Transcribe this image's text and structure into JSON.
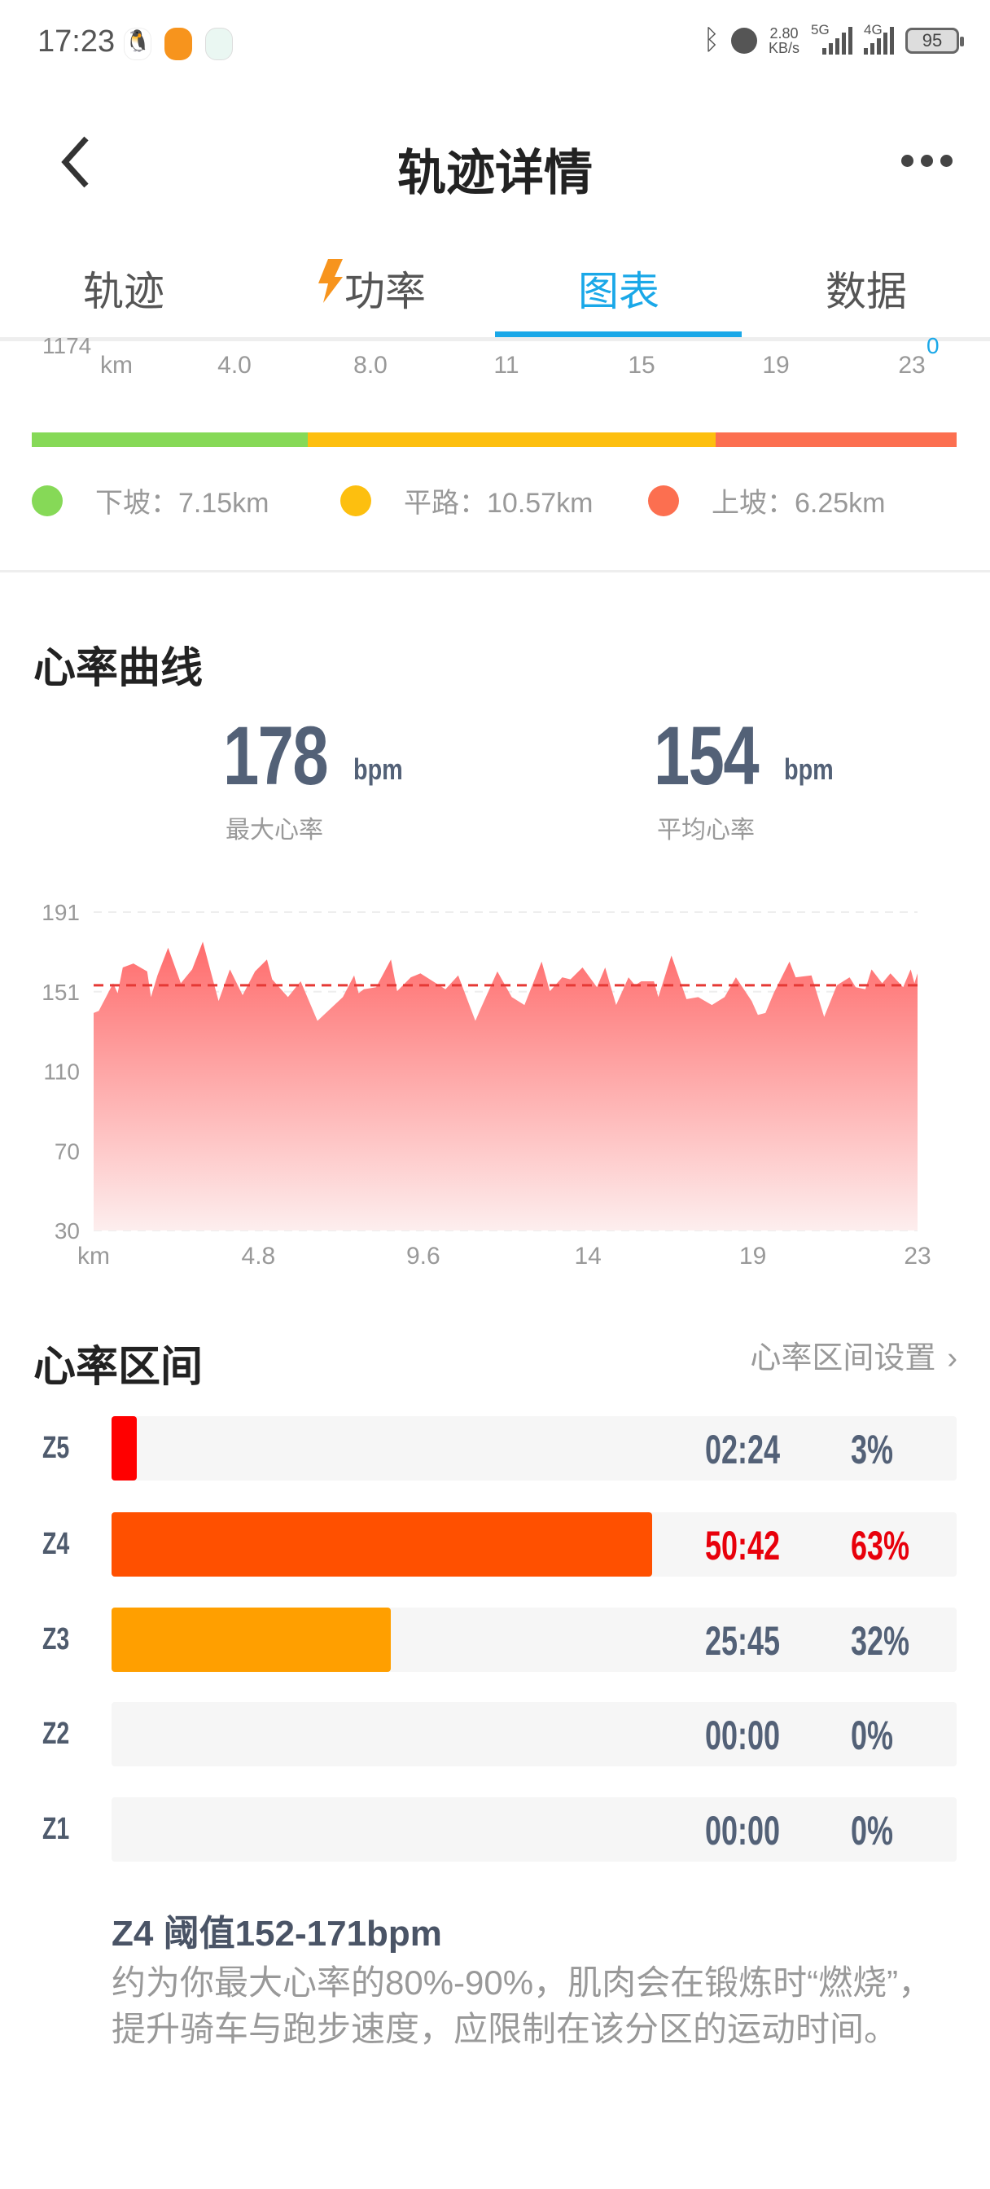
{
  "status_bar": {
    "time": "17:23",
    "net_speed": "2.80",
    "net_unit": "KB/s",
    "sig1": "5G",
    "sig2": "4G",
    "battery": "95",
    "icons": [
      "qq-icon",
      "app-icon",
      "notes-icon",
      "bluetooth-icon",
      "alarm-icon"
    ]
  },
  "header": {
    "title": "轨迹详情",
    "back_icon": "chevron-left-icon",
    "more_icon": "more-dots-icon"
  },
  "tabs": [
    {
      "label": "轨迹"
    },
    {
      "label": "功率",
      "icon": "lightning-icon"
    },
    {
      "label": "图表",
      "active": true
    },
    {
      "label": "数据"
    }
  ],
  "colors": {
    "accent": "#1aa8e8",
    "downhill": "#86d957",
    "flat": "#fdbf0f",
    "uphill": "#fc6f50",
    "hr_fill": "#ff6f6f",
    "avg_line": "#e53935",
    "z5": "#ff0000",
    "z4": "#ff5000",
    "z3": "#ff9f00",
    "z_text": "#536177",
    "z_highlight": "#e8000b"
  },
  "elevation_axis": {
    "cut_label": "1174",
    "cut_right": "0",
    "x_labels": [
      "km",
      "4.0",
      "8.0",
      "11",
      "15",
      "19",
      "23"
    ]
  },
  "slope": {
    "items": [
      {
        "label": "下坡：7.15km",
        "km": 7.15,
        "color": "#86d957"
      },
      {
        "label": "平路：10.57km",
        "km": 10.57,
        "color": "#fdbf0f"
      },
      {
        "label": "上坡：6.25km",
        "km": 6.25,
        "color": "#fc6f50"
      }
    ]
  },
  "heart_rate": {
    "title": "心率曲线",
    "max_value": "178",
    "max_unit": "bpm",
    "max_label": "最大心率",
    "avg_value": "154",
    "avg_unit": "bpm",
    "avg_label": "平均心率"
  },
  "chart_data": {
    "type": "area",
    "y_ticks": [
      "191",
      "151",
      "110",
      "70",
      "30"
    ],
    "ylim": [
      30,
      191
    ],
    "x_ticks": [
      "km",
      "4.8",
      "9.6",
      "14",
      "19",
      "23"
    ],
    "xlim": [
      0,
      24
    ],
    "grid": true,
    "average_line": 154,
    "x": [
      0,
      0.15,
      0.57,
      0.7,
      0.85,
      1.16,
      1.56,
      1.67,
      1.86,
      2.17,
      2.54,
      2.87,
      3.18,
      3.64,
      3.97,
      4.34,
      4.7,
      5.05,
      5.2,
      5.66,
      6.03,
      6.52,
      6.89,
      7.26,
      7.59,
      7.72,
      7.87,
      8.23,
      8.66,
      8.84,
      9.24,
      9.52,
      10.25,
      10.62,
      11.12,
      11.27,
      11.76,
      12.18,
      12.55,
      13.05,
      13.29,
      13.65,
      13.89,
      14.24,
      14.66,
      14.9,
      15.22,
      15.58,
      15.77,
      15.95,
      16.32,
      16.45,
      16.83,
      17.27,
      17.61,
      18.01,
      18.38,
      18.71,
      19.17,
      19.35,
      19.57,
      19.81,
      20.27,
      20.45,
      20.91,
      21.28,
      21.65,
      22.02,
      22.2,
      22.48,
      22.66,
      22.97,
      23.21,
      23.58,
      23.8,
      23.91,
      24.0
    ],
    "y": [
      140,
      141,
      155,
      150,
      163,
      165,
      161,
      148,
      159,
      173,
      155,
      162,
      176,
      146,
      162,
      149,
      161,
      167,
      157,
      148,
      156,
      136,
      142,
      148,
      159,
      150,
      152,
      153,
      167,
      151,
      158,
      160,
      152,
      159,
      136,
      142,
      161,
      148,
      144,
      166,
      151,
      158,
      157,
      163,
      153,
      163,
      144,
      158,
      154,
      156,
      156,
      148,
      169,
      147,
      148,
      144,
      148,
      158,
      146,
      139,
      140,
      150,
      166,
      158,
      159,
      138,
      154,
      158,
      153,
      152,
      162,
      155,
      160,
      153,
      162,
      155,
      160
    ]
  },
  "zones": {
    "title": "心率区间",
    "settings_label": "心率区间设置",
    "settings_icon": "chevron-right-icon",
    "rows": [
      {
        "zone": "Z5",
        "time": "02:24",
        "percent": "3%",
        "fill": 3,
        "color": "#ff0000"
      },
      {
        "zone": "Z4",
        "time": "50:42",
        "percent": "63%",
        "fill": 64,
        "color": "#ff5000",
        "highlight": true
      },
      {
        "zone": "Z3",
        "time": "25:45",
        "percent": "32%",
        "fill": 33,
        "color": "#ff9f00"
      },
      {
        "zone": "Z2",
        "time": "00:00",
        "percent": "0%",
        "fill": 0,
        "color": "#ff9f00"
      },
      {
        "zone": "Z1",
        "time": "00:00",
        "percent": "0%",
        "fill": 0,
        "color": "#ff9f00"
      }
    ],
    "detail_title": "Z4 阈值152-171bpm",
    "detail_text": "约为你最大心率的80%-90%，肌肉会在锻炼时“燃烧”，提升骑车与跑步速度，应限制在该分区的运动时间。"
  }
}
